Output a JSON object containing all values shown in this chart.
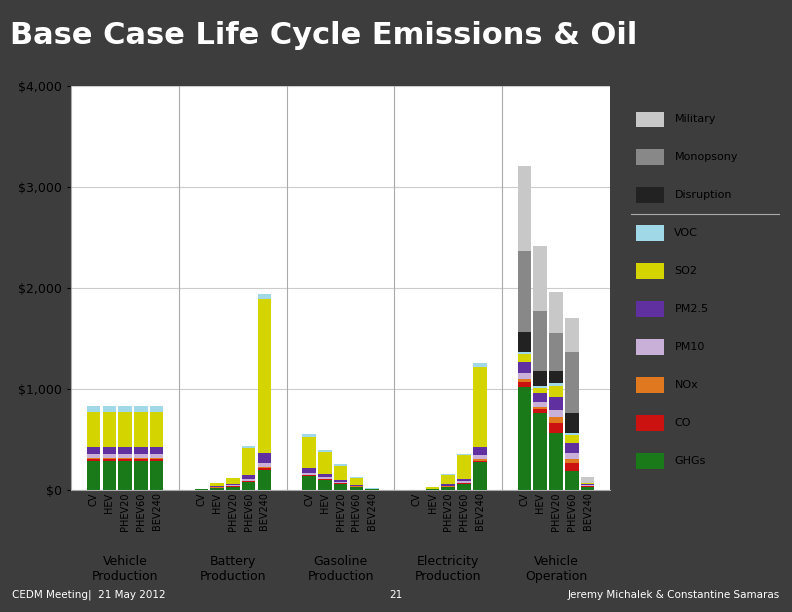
{
  "title": "Base Case Life Cycle Emissions & Oil",
  "title_bg": "#1a1a1a",
  "title_color": "white",
  "footer_left": "CEDM Meeting|  21 May 2012",
  "footer_center": "21",
  "footer_right": "Jeremy Michalek & Constantine Samaras",
  "ylim": [
    0,
    4000
  ],
  "yticks": [
    0,
    1000,
    2000,
    3000,
    4000
  ],
  "ytick_labels": [
    "$0",
    "$1,000",
    "$2,000",
    "$3,000",
    "$4,000"
  ],
  "groups_display": [
    "Vehicle\nProduction",
    "Battery\nProduction",
    "Gasoline\nProduction",
    "Electricity\nProduction",
    "Vehicle\nOperation"
  ],
  "groups_keys": [
    "Vehicle Production",
    "Battery Production",
    "Gasoline Production",
    "Electricity Production",
    "Vehicle Operation"
  ],
  "vehicles": [
    "CV",
    "HEV",
    "PHEV20",
    "PHEV60",
    "BEV240"
  ],
  "series": [
    "GHGs",
    "CO",
    "NOx",
    "PM10",
    "PM2.5",
    "SO2",
    "VOC",
    "Disruption",
    "Monopsony",
    "Military"
  ],
  "colors": {
    "GHGs": "#1a7a1a",
    "CO": "#cc1111",
    "NOx": "#e07820",
    "PM10": "#c8b0d8",
    "PM2.5": "#6030a0",
    "SO2": "#d4d400",
    "VOC": "#a0d8e8",
    "Disruption": "#222222",
    "Monopsony": "#888888",
    "Military": "#c8c8c8"
  },
  "data": {
    "Vehicle Production": {
      "CV": {
        "GHGs": 285,
        "CO": 18,
        "NOx": 12,
        "PM10": 35,
        "PM2.5": 75,
        "SO2": 345,
        "VOC": 55,
        "Disruption": 0,
        "Monopsony": 0,
        "Military": 0
      },
      "HEV": {
        "GHGs": 285,
        "CO": 18,
        "NOx": 12,
        "PM10": 35,
        "PM2.5": 75,
        "SO2": 345,
        "VOC": 55,
        "Disruption": 0,
        "Monopsony": 0,
        "Military": 0
      },
      "PHEV20": {
        "GHGs": 285,
        "CO": 18,
        "NOx": 12,
        "PM10": 35,
        "PM2.5": 75,
        "SO2": 345,
        "VOC": 55,
        "Disruption": 0,
        "Monopsony": 0,
        "Military": 0
      },
      "PHEV60": {
        "GHGs": 285,
        "CO": 18,
        "NOx": 12,
        "PM10": 35,
        "PM2.5": 75,
        "SO2": 345,
        "VOC": 55,
        "Disruption": 0,
        "Monopsony": 0,
        "Military": 0
      },
      "BEV240": {
        "GHGs": 285,
        "CO": 18,
        "NOx": 12,
        "PM10": 35,
        "PM2.5": 75,
        "SO2": 345,
        "VOC": 55,
        "Disruption": 0,
        "Monopsony": 0,
        "Military": 0
      }
    },
    "Battery Production": {
      "CV": {
        "GHGs": 4,
        "CO": 0,
        "NOx": 0,
        "PM10": 0,
        "PM2.5": 0,
        "SO2": 0,
        "VOC": 0,
        "Disruption": 0,
        "Monopsony": 0,
        "Military": 0
      },
      "HEV": {
        "GHGs": 18,
        "CO": 2,
        "NOx": 1,
        "PM10": 4,
        "PM2.5": 8,
        "SO2": 30,
        "VOC": 4,
        "Disruption": 0,
        "Monopsony": 0,
        "Military": 0
      },
      "PHEV20": {
        "GHGs": 30,
        "CO": 3,
        "NOx": 2,
        "PM10": 7,
        "PM2.5": 15,
        "SO2": 55,
        "VOC": 7,
        "Disruption": 0,
        "Monopsony": 0,
        "Military": 0
      },
      "PHEV60": {
        "GHGs": 75,
        "CO": 7,
        "NOx": 5,
        "PM10": 16,
        "PM2.5": 38,
        "SO2": 270,
        "VOC": 16,
        "Disruption": 0,
        "Monopsony": 0,
        "Military": 0
      },
      "BEV240": {
        "GHGs": 195,
        "CO": 18,
        "NOx": 13,
        "PM10": 40,
        "PM2.5": 95,
        "SO2": 1530,
        "VOC": 42,
        "Disruption": 0,
        "Monopsony": 0,
        "Military": 0
      }
    },
    "Gasoline Production": {
      "CV": {
        "GHGs": 130,
        "CO": 10,
        "NOx": 7,
        "PM10": 18,
        "PM2.5": 50,
        "SO2": 310,
        "VOC": 28,
        "Disruption": 0,
        "Monopsony": 0,
        "Military": 0
      },
      "HEV": {
        "GHGs": 95,
        "CO": 7,
        "NOx": 5,
        "PM10": 13,
        "PM2.5": 37,
        "SO2": 215,
        "VOC": 20,
        "Disruption": 0,
        "Monopsony": 0,
        "Military": 0
      },
      "PHEV20": {
        "GHGs": 58,
        "CO": 5,
        "NOx": 3,
        "PM10": 9,
        "PM2.5": 23,
        "SO2": 138,
        "VOC": 13,
        "Disruption": 0,
        "Monopsony": 0,
        "Military": 0
      },
      "PHEV60": {
        "GHGs": 27,
        "CO": 2,
        "NOx": 2,
        "PM10": 5,
        "PM2.5": 11,
        "SO2": 68,
        "VOC": 6,
        "Disruption": 0,
        "Monopsony": 0,
        "Military": 0
      },
      "BEV240": {
        "GHGs": 3,
        "CO": 0,
        "NOx": 0,
        "PM10": 1,
        "PM2.5": 2,
        "SO2": 4,
        "VOC": 1,
        "Disruption": 0,
        "Monopsony": 0,
        "Military": 0
      }
    },
    "Electricity Production": {
      "CV": {
        "GHGs": 0,
        "CO": 0,
        "NOx": 0,
        "PM10": 0,
        "PM2.5": 0,
        "SO2": 0,
        "VOC": 0,
        "Disruption": 0,
        "Monopsony": 0,
        "Military": 0
      },
      "HEV": {
        "GHGs": 4,
        "CO": 0,
        "NOx": 0,
        "PM10": 2,
        "PM2.5": 3,
        "SO2": 18,
        "VOC": 2,
        "Disruption": 0,
        "Monopsony": 0,
        "Military": 0
      },
      "PHEV20": {
        "GHGs": 28,
        "CO": 2,
        "NOx": 2,
        "PM10": 7,
        "PM2.5": 13,
        "SO2": 95,
        "VOC": 7,
        "Disruption": 0,
        "Monopsony": 0,
        "Military": 0
      },
      "PHEV60": {
        "GHGs": 58,
        "CO": 5,
        "NOx": 4,
        "PM10": 14,
        "PM2.5": 28,
        "SO2": 230,
        "VOC": 14,
        "Disruption": 0,
        "Monopsony": 0,
        "Military": 0
      },
      "BEV240": {
        "GHGs": 270,
        "CO": 18,
        "NOx": 13,
        "PM10": 42,
        "PM2.5": 75,
        "SO2": 800,
        "VOC": 38,
        "Disruption": 0,
        "Monopsony": 0,
        "Military": 0
      }
    },
    "Vehicle Operation": {
      "CV": {
        "GHGs": 1020,
        "CO": 50,
        "NOx": 28,
        "PM10": 55,
        "PM2.5": 115,
        "SO2": 70,
        "VOC": 20,
        "Disruption": 200,
        "Monopsony": 800,
        "Military": 850
      },
      "HEV": {
        "GHGs": 760,
        "CO": 40,
        "NOx": 22,
        "PM10": 42,
        "PM2.5": 88,
        "SO2": 55,
        "VOC": 15,
        "Disruption": 150,
        "Monopsony": 600,
        "Military": 640
      },
      "PHEV20": {
        "GHGs": 560,
        "CO": 100,
        "NOx": 55,
        "PM10": 75,
        "PM2.5": 125,
        "SO2": 115,
        "VOC": 25,
        "Disruption": 120,
        "Monopsony": 380,
        "Military": 400
      },
      "PHEV60": {
        "GHGs": 180,
        "CO": 80,
        "NOx": 45,
        "PM10": 58,
        "PM2.5": 95,
        "SO2": 85,
        "VOC": 18,
        "Disruption": 200,
        "Monopsony": 600,
        "Military": 340
      },
      "BEV240": {
        "GHGs": 30,
        "CO": 5,
        "NOx": 2,
        "PM10": 6,
        "PM2.5": 14,
        "SO2": 8,
        "VOC": 2,
        "Disruption": 0,
        "Monopsony": 0,
        "Military": 55
      }
    }
  }
}
